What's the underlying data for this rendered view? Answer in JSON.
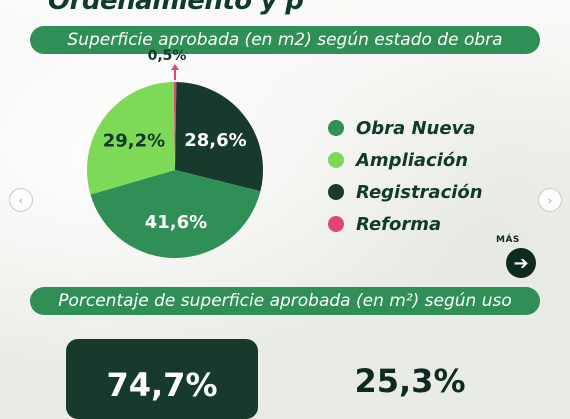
{
  "header": {
    "title": "Ordenamiento y p"
  },
  "section1": {
    "title": "Superficie aprobada (en m2) según estado de obra"
  },
  "section2": {
    "title": "Porcentaje de superficie aprobada (en m²) según uso"
  },
  "chart_data": [
    {
      "type": "pie",
      "title": "Superficie aprobada (en m2) según estado de obra",
      "categories": [
        "Obra Nueva",
        "Ampliación",
        "Registración",
        "Reforma"
      ],
      "values": [
        41.6,
        29.2,
        28.6,
        0.5
      ],
      "labels": [
        "41,6%",
        "29,2%",
        "28,6%",
        "0,5%"
      ],
      "colors": [
        "#2f8f57",
        "#7ed957",
        "#173a2c",
        "#e0467a"
      ],
      "legend": "right"
    }
  ],
  "nav": {
    "prev_icon": "‹",
    "next_icon": "›",
    "more_label": "MÁS",
    "more_icon": "➔"
  },
  "usage": {
    "value_a": "74,7%",
    "value_b": "25,3%"
  },
  "colors": {
    "accent": "#2f8f57",
    "dark": "#173a2c",
    "light_green": "#7ed957",
    "pink": "#e0467a"
  }
}
